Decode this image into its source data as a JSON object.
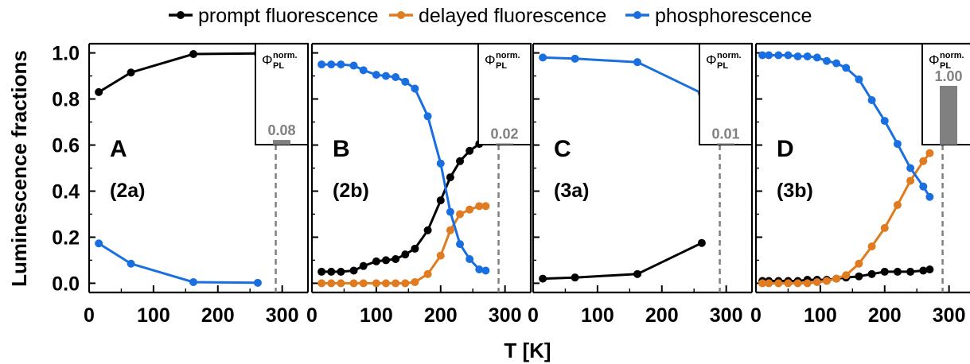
{
  "chart_data": {
    "type": "line",
    "xlabel": "T [K]",
    "ylabel": "Luminescence fractions",
    "xlim": [
      0,
      340
    ],
    "ylim": [
      -0.04,
      1.04
    ],
    "xticks": [
      "0",
      "100",
      "200",
      "300"
    ],
    "yticks": [
      "0.0",
      "0.2",
      "0.4",
      "0.6",
      "0.8",
      "1.0"
    ],
    "legend": [
      {
        "name": "prompt fluorescence",
        "color": "#000000"
      },
      {
        "name": "delayed fluorescence",
        "color": "#e07b20"
      },
      {
        "name": "phosphorescence",
        "color": "#1a6fe0"
      }
    ],
    "dashed_line_x": 290,
    "inset_symbol": "Φ",
    "inset_sub": "PL",
    "inset_sup": "norm.",
    "panels": [
      {
        "label": "A",
        "sublabel": "(2a)",
        "inset_value": 0.08,
        "inset_label": "0.08",
        "series": [
          {
            "name": "prompt fluorescence",
            "x": [
              15,
              65,
              162,
              262
            ],
            "y": [
              0.83,
              0.915,
              0.995,
              0.998
            ]
          },
          {
            "name": "phosphorescence",
            "x": [
              15,
              65,
              162,
              262
            ],
            "y": [
              0.173,
              0.085,
              0.005,
              0.002
            ]
          }
        ]
      },
      {
        "label": "B",
        "sublabel": "(2b)",
        "inset_value": 0.02,
        "inset_label": "0.02",
        "series": [
          {
            "name": "prompt fluorescence",
            "x": [
              15,
              30,
              45,
              65,
              80,
              100,
              115,
              130,
              145,
              160,
              180,
              200,
              215,
              230,
              245,
              260,
              270
            ],
            "y": [
              0.05,
              0.05,
              0.05,
              0.055,
              0.075,
              0.095,
              0.1,
              0.105,
              0.125,
              0.15,
              0.23,
              0.36,
              0.46,
              0.53,
              0.575,
              0.605,
              0.615
            ]
          },
          {
            "name": "delayed fluorescence",
            "x": [
              15,
              30,
              45,
              65,
              80,
              100,
              115,
              130,
              145,
              160,
              180,
              200,
              215,
              230,
              245,
              260,
              270
            ],
            "y": [
              0.0,
              0.0,
              0.0,
              0.0,
              0.0,
              0.0,
              0.0,
              0.0,
              0.0,
              0.005,
              0.04,
              0.12,
              0.23,
              0.3,
              0.32,
              0.335,
              0.335
            ]
          },
          {
            "name": "phosphorescence",
            "x": [
              15,
              30,
              45,
              65,
              80,
              100,
              115,
              130,
              145,
              160,
              180,
              200,
              215,
              230,
              245,
              260,
              270
            ],
            "y": [
              0.95,
              0.95,
              0.95,
              0.945,
              0.925,
              0.905,
              0.9,
              0.895,
              0.875,
              0.845,
              0.725,
              0.52,
              0.31,
              0.17,
              0.105,
              0.06,
              0.055
            ]
          }
        ]
      },
      {
        "label": "C",
        "sublabel": "(3a)",
        "inset_value": 0.01,
        "inset_label": "0.01",
        "series": [
          {
            "name": "prompt fluorescence",
            "x": [
              15,
              65,
              162,
              262
            ],
            "y": [
              0.02,
              0.025,
              0.04,
              0.175
            ]
          },
          {
            "name": "phosphorescence",
            "x": [
              15,
              65,
              162,
              262
            ],
            "y": [
              0.98,
              0.975,
              0.96,
              0.825
            ]
          }
        ]
      },
      {
        "label": "D",
        "sublabel": "(3b)",
        "inset_value": 1.0,
        "inset_label": "1.00",
        "series": [
          {
            "name": "prompt fluorescence",
            "x": [
              10,
              20,
              35,
              50,
              65,
              80,
              95,
              110,
              125,
              140,
              160,
              180,
              200,
              220,
              240,
              260,
              270
            ],
            "y": [
              0.01,
              0.01,
              0.01,
              0.01,
              0.01,
              0.015,
              0.015,
              0.015,
              0.02,
              0.025,
              0.03,
              0.04,
              0.05,
              0.05,
              0.05,
              0.055,
              0.06
            ]
          },
          {
            "name": "delayed fluorescence",
            "x": [
              10,
              20,
              35,
              50,
              65,
              80,
              95,
              110,
              125,
              140,
              160,
              180,
              200,
              220,
              240,
              260,
              270
            ],
            "y": [
              0.0,
              0.0,
              0.0,
              0.0,
              0.0,
              0.0,
              0.005,
              0.01,
              0.02,
              0.035,
              0.085,
              0.16,
              0.24,
              0.34,
              0.445,
              0.53,
              0.565
            ]
          },
          {
            "name": "phosphorescence",
            "x": [
              10,
              20,
              35,
              50,
              65,
              80,
              95,
              110,
              125,
              140,
              160,
              180,
              200,
              220,
              240,
              260,
              270
            ],
            "y": [
              0.99,
              0.99,
              0.99,
              0.99,
              0.985,
              0.985,
              0.98,
              0.965,
              0.955,
              0.935,
              0.885,
              0.795,
              0.705,
              0.605,
              0.5,
              0.42,
              0.375
            ]
          }
        ]
      }
    ]
  }
}
